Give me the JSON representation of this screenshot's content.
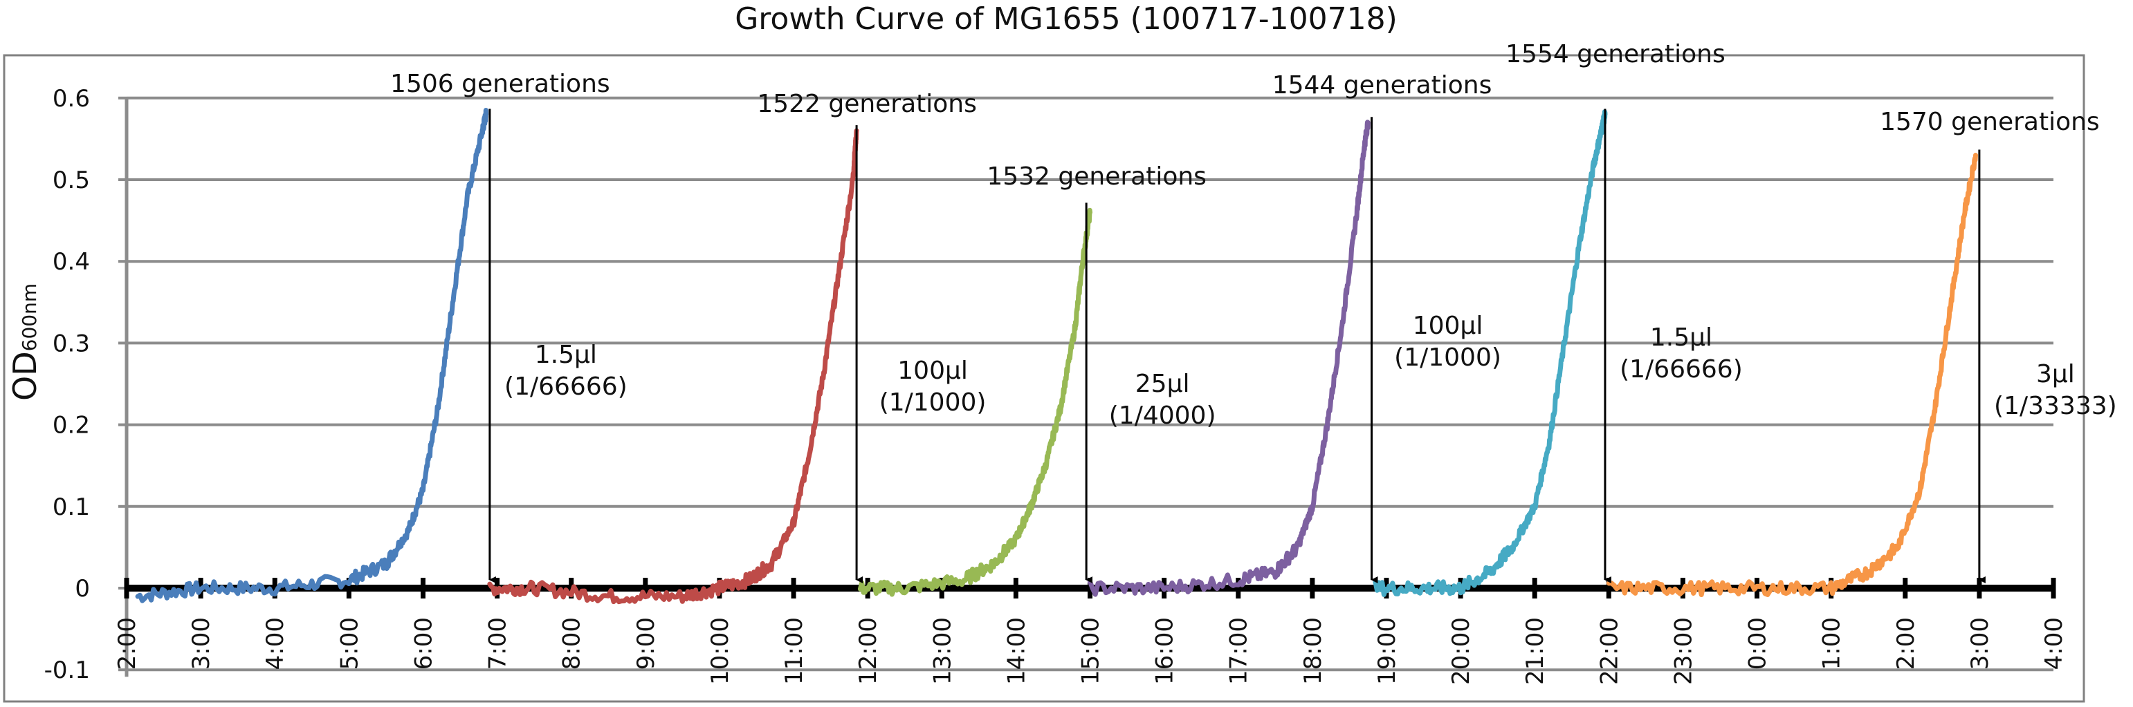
{
  "chart_data": {
    "type": "line",
    "title": "Growth Curve of MG1655 (100717-100718)",
    "ylabel": "OD",
    "ylabel_subscript": "600nm",
    "xlabel": "",
    "ylim": [
      -0.1,
      0.6
    ],
    "yticks": [
      -0.1,
      0,
      0.1,
      0.2,
      0.3,
      0.4,
      0.5,
      0.6
    ],
    "ytick_labels": [
      "-0.1",
      "0",
      "0.1",
      "0.2",
      "0.3",
      "0.4",
      "0.5",
      "0.6"
    ],
    "xticks": [
      "2:00",
      "3:00",
      "4:00",
      "5:00",
      "6:00",
      "7:00",
      "8:00",
      "9:00",
      "10:00",
      "11:00",
      "12:00",
      "13:00",
      "14:00",
      "15:00",
      "16:00",
      "17:00",
      "18:00",
      "19:00",
      "20:00",
      "21:00",
      "22:00",
      "23:00",
      "0:00",
      "1:00",
      "2:00",
      "3:00",
      "4:00"
    ],
    "xlim_hours": [
      2,
      28
    ],
    "grid": true,
    "legend": "none",
    "series": [
      {
        "color": "#4a7ebb",
        "x": [
          2.15,
          3.0,
          4.0,
          5.0,
          5.5,
          5.8,
          6.0,
          6.2,
          6.4,
          6.6,
          6.8,
          6.85
        ],
        "y": [
          -0.01,
          0.0,
          0.0,
          0.01,
          0.03,
          0.07,
          0.12,
          0.22,
          0.35,
          0.48,
          0.56,
          0.58
        ]
      },
      {
        "color": "#be4b48",
        "x": [
          6.9,
          7.5,
          8.5,
          9.5,
          10.0,
          10.4,
          10.7,
          11.0,
          11.2,
          11.4,
          11.6,
          11.8,
          11.85
        ],
        "y": [
          0.0,
          0.0,
          -0.01,
          -0.01,
          0.0,
          0.01,
          0.03,
          0.08,
          0.16,
          0.26,
          0.38,
          0.5,
          0.56
        ]
      },
      {
        "color": "#98b954",
        "x": [
          11.9,
          12.5,
          13.3,
          13.7,
          14.0,
          14.2,
          14.4,
          14.6,
          14.8,
          14.9,
          15.0
        ],
        "y": [
          0.0,
          0.0,
          0.01,
          0.03,
          0.06,
          0.1,
          0.15,
          0.22,
          0.32,
          0.4,
          0.46
        ]
      },
      {
        "color": "#7d60a0",
        "x": [
          15.0,
          16.0,
          17.0,
          17.5,
          17.8,
          18.0,
          18.2,
          18.4,
          18.6,
          18.7,
          18.75
        ],
        "y": [
          0.0,
          0.0,
          0.01,
          0.02,
          0.05,
          0.1,
          0.2,
          0.32,
          0.46,
          0.54,
          0.57
        ]
      },
      {
        "color": "#46aac4",
        "x": [
          18.85,
          19.5,
          20.0,
          20.4,
          20.7,
          21.0,
          21.2,
          21.4,
          21.6,
          21.8,
          21.9,
          21.95
        ],
        "y": [
          0.0,
          0.0,
          0.0,
          0.02,
          0.05,
          0.1,
          0.18,
          0.3,
          0.42,
          0.52,
          0.56,
          0.58
        ]
      },
      {
        "color": "#f79646",
        "x": [
          22.0,
          23.0,
          24.0,
          25.0,
          25.5,
          25.9,
          26.2,
          26.4,
          26.6,
          26.8,
          26.95
        ],
        "y": [
          0.0,
          0.0,
          0.0,
          0.0,
          0.02,
          0.05,
          0.12,
          0.22,
          0.34,
          0.46,
          0.53
        ]
      }
    ],
    "annotations": [
      {
        "x": 6.9,
        "y_top": 0.58,
        "label": "1506 generations",
        "volume": "1.5μl",
        "dilution": "(1/66666)"
      },
      {
        "x": 11.85,
        "y_top": 0.56,
        "label": "1522 generations",
        "volume": "100μl",
        "dilution": "(1/1000)"
      },
      {
        "x": 14.95,
        "y_top": 0.465,
        "label": "1532 generations",
        "volume": "25μl",
        "dilution": "(1/4000)"
      },
      {
        "x": 18.8,
        "y_top": 0.57,
        "label": "1544 generations",
        "volume": "100μl",
        "dilution": "(1/1000)"
      },
      {
        "x": 21.95,
        "y_top": 0.58,
        "label": "1554 generations",
        "volume": "1.5μl",
        "dilution": "(1/66666)"
      },
      {
        "x": 27.0,
        "y_top": 0.53,
        "label": "1570 generations",
        "volume": "3μl",
        "dilution": "(1/33333)"
      }
    ]
  }
}
